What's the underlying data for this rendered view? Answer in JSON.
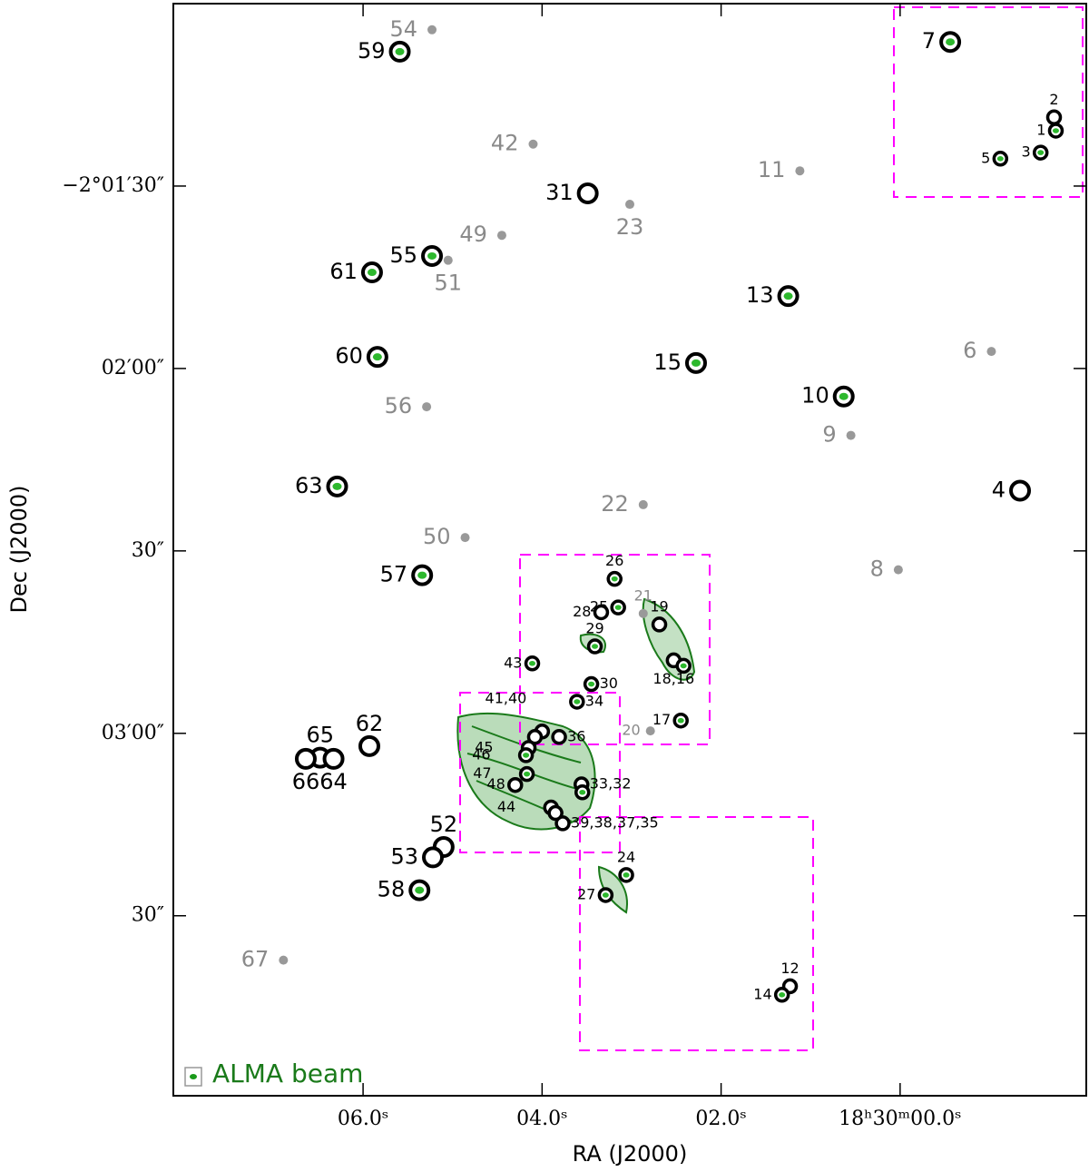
{
  "chart_data": {
    "type": "scatter",
    "xlabel": "RA (J2000)",
    "ylabel": "Dec (J2000)",
    "xlim": [
      8.12,
      -2.08
    ],
    "ylim": [
      -7439.6,
      -7260
    ],
    "xticks": [
      {
        "value": 6,
        "label": "06.0ˢ"
      },
      {
        "value": 4,
        "label": "04.0ˢ"
      },
      {
        "value": 2,
        "label": "02.0ˢ"
      },
      {
        "value": 0,
        "label": "18ʰ30ᵐ00.0ˢ"
      }
    ],
    "yticks": [
      {
        "value": -7290,
        "label": "−2°01′30″"
      },
      {
        "value": -7320,
        "label": "02′00″"
      },
      {
        "value": -7350,
        "label": "30″"
      },
      {
        "value": -7380,
        "label": "03′00″"
      },
      {
        "value": -7410,
        "label": "30″"
      }
    ],
    "legend": "ALMA beam",
    "sources": [
      {
        "label": "54",
        "x": 5.23,
        "y": -7264.3,
        "marker": "dot",
        "side": "left"
      },
      {
        "label": "59",
        "x": 5.59,
        "y": -7267.9,
        "marker": "ring-core",
        "side": "left"
      },
      {
        "label": "7",
        "x": -0.56,
        "y": -7266.3,
        "marker": "ring-core",
        "side": "left"
      },
      {
        "label": "42",
        "x": 4.1,
        "y": -7283.1,
        "marker": "dot",
        "side": "left"
      },
      {
        "label": "11",
        "x": 1.12,
        "y": -7287.5,
        "marker": "dot",
        "side": "left"
      },
      {
        "label": "31",
        "x": 3.49,
        "y": -7291.2,
        "marker": "ring",
        "side": "left"
      },
      {
        "label": "23",
        "x": 3.02,
        "y": -7293.0,
        "marker": "dot",
        "side": "below"
      },
      {
        "label": "49",
        "x": 4.45,
        "y": -7298.1,
        "marker": "dot",
        "side": "left"
      },
      {
        "label": "55",
        "x": 5.23,
        "y": -7301.5,
        "marker": "ring-core",
        "side": "left"
      },
      {
        "label": "51",
        "x": 5.05,
        "y": -7302.2,
        "marker": "dot",
        "side": "below"
      },
      {
        "label": "61",
        "x": 5.9,
        "y": -7304.2,
        "marker": "ring-core",
        "side": "left"
      },
      {
        "label": "13",
        "x": 1.25,
        "y": -7308.1,
        "marker": "ring-core",
        "side": "left"
      },
      {
        "label": "6",
        "x": -1.02,
        "y": -7317.2,
        "marker": "dot",
        "side": "left"
      },
      {
        "label": "60",
        "x": 5.84,
        "y": -7318.1,
        "marker": "ring-core",
        "side": "left"
      },
      {
        "label": "15",
        "x": 2.28,
        "y": -7319.1,
        "marker": "ring-core",
        "side": "left"
      },
      {
        "label": "10",
        "x": 0.63,
        "y": -7324.6,
        "marker": "ring-core",
        "side": "left"
      },
      {
        "label": "56",
        "x": 5.29,
        "y": -7326.3,
        "marker": "dot",
        "side": "left"
      },
      {
        "label": "9",
        "x": 0.55,
        "y": -7331.0,
        "marker": "dot",
        "side": "left"
      },
      {
        "label": "63",
        "x": 6.29,
        "y": -7339.4,
        "marker": "ring-core",
        "side": "left"
      },
      {
        "label": "4",
        "x": -1.34,
        "y": -7340.1,
        "marker": "ring",
        "side": "left"
      },
      {
        "label": "22",
        "x": 2.87,
        "y": -7342.4,
        "marker": "dot",
        "side": "left"
      },
      {
        "label": "50",
        "x": 4.86,
        "y": -7347.8,
        "marker": "dot",
        "side": "left"
      },
      {
        "label": "8",
        "x": 0.02,
        "y": -7353.1,
        "marker": "dot",
        "side": "left"
      },
      {
        "label": "57",
        "x": 5.34,
        "y": -7354.0,
        "marker": "ring-core",
        "side": "left"
      },
      {
        "label": "62",
        "x": 5.93,
        "y": -7382.1,
        "marker": "ring",
        "side": "above"
      },
      {
        "label": "65",
        "x": 6.48,
        "y": -7384.0,
        "marker": "ring",
        "side": "above"
      },
      {
        "label": "66",
        "x": 6.64,
        "y": -7384.2,
        "marker": "ring",
        "side": "below"
      },
      {
        "label": "64",
        "x": 6.33,
        "y": -7384.2,
        "marker": "ring",
        "side": "below"
      },
      {
        "label": "52",
        "x": 5.1,
        "y": -7398.7,
        "marker": "ring",
        "side": "above"
      },
      {
        "label": "53",
        "x": 5.22,
        "y": -7400.4,
        "marker": "ring",
        "side": "left"
      },
      {
        "label": "58",
        "x": 5.37,
        "y": -7405.8,
        "marker": "ring-core",
        "side": "left"
      },
      {
        "label": "67",
        "x": 6.89,
        "y": -7417.3,
        "marker": "dot",
        "side": "left"
      }
    ],
    "cluster_sources": [
      {
        "label": "2",
        "x": -1.72,
        "y": -7278.7,
        "marker": "ring",
        "side": "above"
      },
      {
        "label": "1",
        "x": -1.74,
        "y": -7280.9,
        "marker": "ring-core",
        "side": "left"
      },
      {
        "label": "3",
        "x": -1.57,
        "y": -7284.5,
        "marker": "ring-core",
        "side": "left"
      },
      {
        "label": "5",
        "x": -1.12,
        "y": -7285.5,
        "marker": "ring-core",
        "side": "left"
      },
      {
        "label": "26",
        "x": 3.19,
        "y": -7354.6,
        "marker": "ring-core",
        "side": "above"
      },
      {
        "label": "25",
        "x": 3.15,
        "y": -7359.3,
        "marker": "ring-core",
        "side": "left"
      },
      {
        "label": "28",
        "x": 3.34,
        "y": -7360.1,
        "marker": "ring",
        "side": "left"
      },
      {
        "label": "21",
        "x": 2.87,
        "y": -7360.3,
        "marker": "dot",
        "side": "above"
      },
      {
        "label": "19",
        "x": 2.69,
        "y": -7362.1,
        "marker": "ring",
        "side": "above"
      },
      {
        "label": "29",
        "x": 3.41,
        "y": -7365.7,
        "marker": "ring-core",
        "side": "above"
      },
      {
        "label": "43",
        "x": 4.11,
        "y": -7368.5,
        "marker": "ring-core",
        "side": "left"
      },
      {
        "label": "18,16",
        "x": 2.53,
        "y": -7368.0,
        "marker": "ring",
        "side": "below"
      },
      {
        "label": null,
        "x": 2.42,
        "y": -7368.9,
        "marker": "ring-core",
        "side": "below"
      },
      {
        "label": "30",
        "x": 3.45,
        "y": -7371.9,
        "marker": "ring-core",
        "side": "right"
      },
      {
        "label": "34",
        "x": 3.61,
        "y": -7374.8,
        "marker": "ring-core",
        "side": "right"
      },
      {
        "label": "17",
        "x": 2.45,
        "y": -7377.9,
        "marker": "ring-core",
        "side": "left"
      },
      {
        "label": "20",
        "x": 2.79,
        "y": -7379.6,
        "marker": "dot",
        "side": "left"
      },
      {
        "label": "41,40",
        "x": 4.0,
        "y": -7379.7,
        "marker": "ring",
        "side": "far-left-up"
      },
      {
        "label": null,
        "x": 4.08,
        "y": -7380.6,
        "marker": "ring",
        "side": "left"
      },
      {
        "label": "36",
        "x": 3.81,
        "y": -7380.6,
        "marker": "ring",
        "side": "right"
      },
      {
        "label": "45",
        "x": 4.15,
        "y": -7382.4,
        "marker": "ring",
        "side": "far-left"
      },
      {
        "label": "46",
        "x": 4.18,
        "y": -7383.6,
        "marker": "ring-core",
        "side": "far-left"
      },
      {
        "label": "47",
        "x": 4.17,
        "y": -7386.7,
        "marker": "ring-core",
        "side": "far-left"
      },
      {
        "label": "48",
        "x": 4.3,
        "y": -7388.5,
        "marker": "ring",
        "side": "left"
      },
      {
        "label": "33,32",
        "x": 3.56,
        "y": -7388.4,
        "marker": "ring",
        "side": "right"
      },
      {
        "label": null,
        "x": 3.55,
        "y": -7389.7,
        "marker": "ring-core",
        "side": "right"
      },
      {
        "label": "44",
        "x": 3.9,
        "y": -7392.2,
        "marker": "ring",
        "side": "far-left"
      },
      {
        "label": "39,38,37,35",
        "x": 3.77,
        "y": -7394.8,
        "marker": "ring",
        "side": "right"
      },
      {
        "label": null,
        "x": 3.85,
        "y": -7393.1,
        "marker": "ring",
        "side": "right"
      },
      {
        "label": "24",
        "x": 3.06,
        "y": -7403.3,
        "marker": "ring-core",
        "side": "above"
      },
      {
        "label": "27",
        "x": 3.29,
        "y": -7406.6,
        "marker": "ring-core",
        "side": "left"
      },
      {
        "label": "12",
        "x": 1.23,
        "y": -7421.6,
        "marker": "ring",
        "side": "above"
      },
      {
        "label": "14",
        "x": 1.32,
        "y": -7423.0,
        "marker": "ring-core",
        "side": "left"
      }
    ]
  }
}
